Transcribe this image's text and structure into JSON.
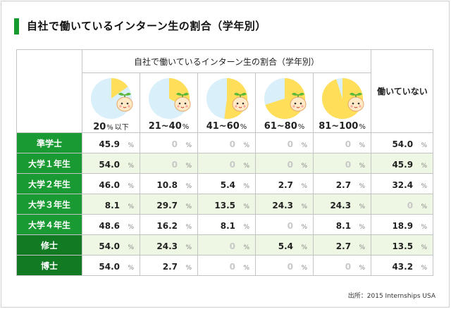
{
  "title": "自社で働いているインターン生の割合（学年別）",
  "source": "出所：2015 Internships USA",
  "colors": {
    "accent": "#159a2d",
    "pie_fill": "#ffde5a",
    "pie_empty": "#d9f0fb"
  },
  "chart_data": {
    "type": "table",
    "title": "自社で働いているインターン生の割合（学年別）",
    "group_header": "自社で働いているインターン生の割合（学年別）",
    "not_working_header": "働いていない",
    "unit": "%",
    "columns": [
      {
        "label": "20",
        "pct": "%",
        "suffix": "以下",
        "pie_fraction": 0.15
      },
      {
        "label": "21~40",
        "pct": "%",
        "suffix": "",
        "pie_fraction": 0.33
      },
      {
        "label": "41~60",
        "pct": "%",
        "suffix": "",
        "pie_fraction": 0.52
      },
      {
        "label": "61~80",
        "pct": "%",
        "suffix": "",
        "pie_fraction": 0.7
      },
      {
        "label": "81~100",
        "pct": "%",
        "suffix": "",
        "pie_fraction": 0.95
      }
    ],
    "rows": [
      {
        "label": "準学士",
        "values": [
          "45.9",
          "0",
          "0",
          "0",
          "0"
        ],
        "not_working": "54.0"
      },
      {
        "label": "大学１年生",
        "values": [
          "54.0",
          "0",
          "0",
          "0",
          "0"
        ],
        "not_working": "45.9"
      },
      {
        "label": "大学２年生",
        "values": [
          "46.0",
          "10.8",
          "5.4",
          "2.7",
          "2.7"
        ],
        "not_working": "32.4"
      },
      {
        "label": "大学３年生",
        "values": [
          "8.1",
          "29.7",
          "13.5",
          "24.3",
          "24.3"
        ],
        "not_working": "0"
      },
      {
        "label": "大学４年生",
        "values": [
          "48.6",
          "16.2",
          "8.1",
          "0",
          "8.1"
        ],
        "not_working": "18.9"
      },
      {
        "label": "修士",
        "values": [
          "54.0",
          "24.3",
          "0",
          "5.4",
          "2.7"
        ],
        "not_working": "13.5"
      },
      {
        "label": "博士",
        "values": [
          "54.0",
          "2.7",
          "0",
          "0",
          "0"
        ],
        "not_working": "43.2"
      }
    ]
  }
}
